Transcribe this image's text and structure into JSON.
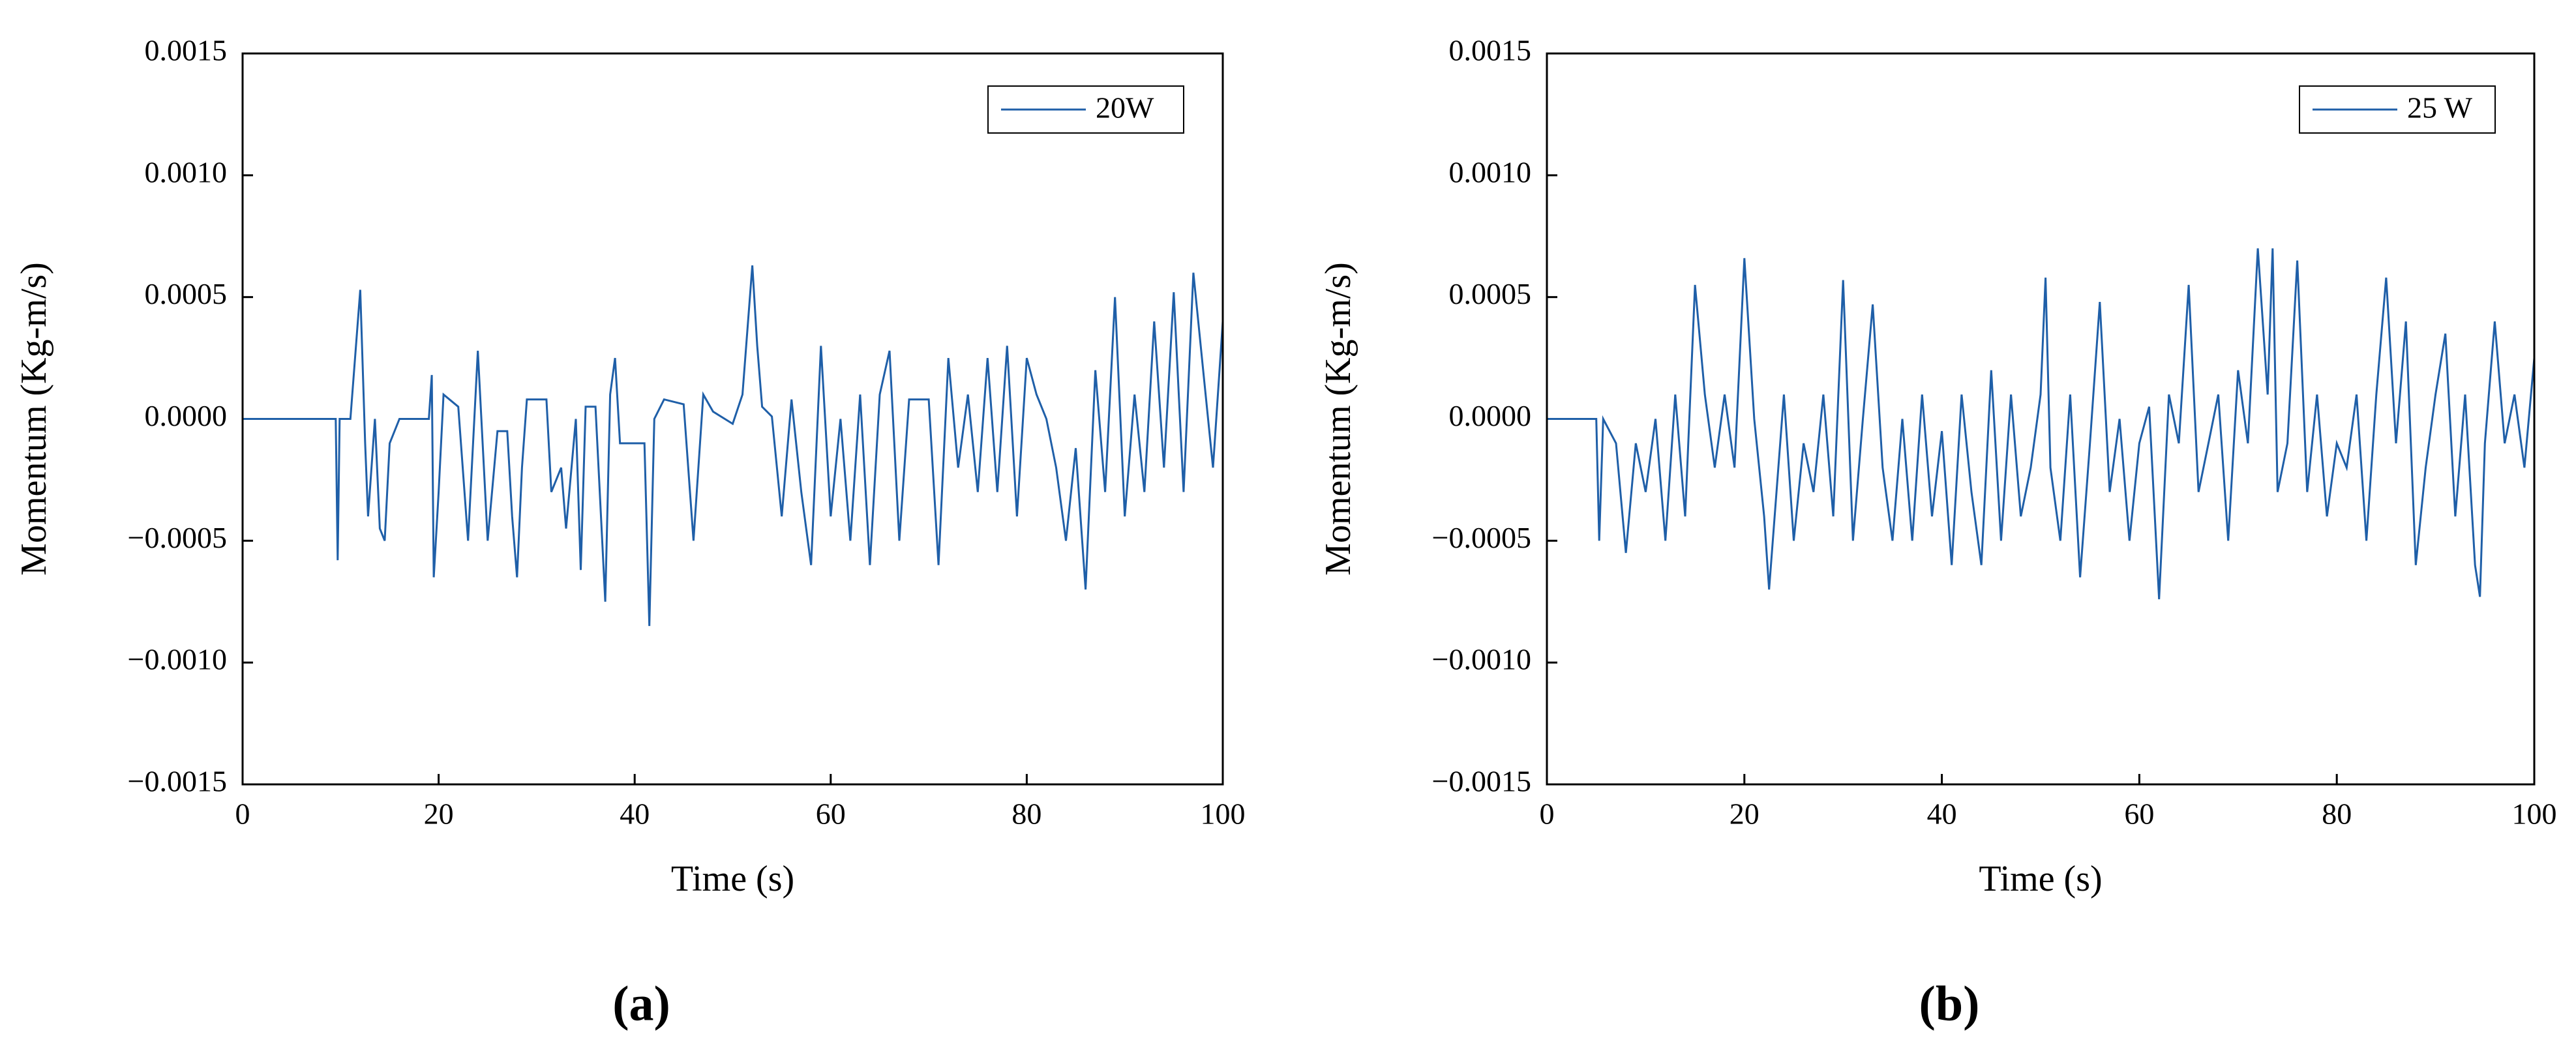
{
  "chart_data": [
    {
      "type": "line",
      "panel_label": "(a)",
      "x_label": "Time (s)",
      "y_label": "Momentum (Kg-m/s)",
      "xlim": [
        0,
        100
      ],
      "ylim": [
        -0.0015,
        0.0015
      ],
      "xticks": [
        0,
        20,
        40,
        60,
        80,
        100
      ],
      "yticks": [
        {
          "value": -0.0015,
          "label": "−0.0015"
        },
        {
          "value": -0.001,
          "label": "−0.0010"
        },
        {
          "value": -0.0005,
          "label": "−0.0005"
        },
        {
          "value": 0,
          "label": "0.0000"
        },
        {
          "value": 0.0005,
          "label": "0.0005"
        },
        {
          "value": 0.001,
          "label": "0.0010"
        },
        {
          "value": 0.0015,
          "label": "0.0015"
        }
      ],
      "legend_position": "upper right",
      "x": [
        0,
        9.5,
        9.7,
        9.9,
        11,
        12,
        12.5,
        12.8,
        13.5,
        14,
        14.5,
        15,
        16,
        19,
        19.3,
        19.5,
        20,
        20.5,
        22,
        23,
        24,
        25,
        26,
        27,
        27.5,
        28,
        28.5,
        29,
        31,
        31.5,
        32.5,
        33,
        34,
        34.5,
        35,
        36,
        37,
        37.5,
        38,
        38.5,
        41,
        41.5,
        42,
        43,
        45,
        46,
        47,
        48,
        50,
        51,
        52,
        52.5,
        53,
        54,
        55,
        56,
        57,
        58,
        59,
        60,
        61,
        62,
        63,
        64,
        65,
        66,
        67,
        68,
        70,
        71,
        72,
        73,
        74,
        75,
        76,
        77,
        78,
        79,
        80,
        81,
        82,
        83,
        84,
        85,
        86,
        87,
        88,
        89,
        90,
        91,
        92,
        93,
        94,
        95,
        96,
        97,
        98,
        99,
        100
      ],
      "series": [
        {
          "name": "20W",
          "color": "#1f5fa8",
          "values": [
            0,
            0,
            -0.00058,
            0,
            0,
            0.00053,
            -0.0001,
            -0.0004,
            0,
            -0.00045,
            -0.0005,
            -0.0001,
            0,
            0,
            0.00018,
            -0.00065,
            -0.0003,
            0.0001,
            5e-05,
            -0.0005,
            0.00028,
            -0.0005,
            -5e-05,
            -5e-05,
            -0.0004,
            -0.00065,
            -0.0002,
            8e-05,
            8e-05,
            -0.0003,
            -0.0002,
            -0.00045,
            0,
            -0.00062,
            5e-05,
            5e-05,
            -0.00075,
            0.0001,
            0.00025,
            -0.0001,
            -0.0001,
            -0.00085,
            0,
            8e-05,
            6e-05,
            -0.0005,
            0.0001,
            3e-05,
            -2e-05,
            0.0001,
            0.00063,
            0.0003,
            5e-05,
            1e-05,
            -0.0004,
            8e-05,
            -0.0003,
            -0.0006,
            0.0003,
            -0.0004,
            0,
            -0.0005,
            0.0001,
            -0.0006,
            0.0001,
            0.00028,
            -0.0005,
            8e-05,
            8e-05,
            -0.0006,
            0.00025,
            -0.0002,
            0.0001,
            -0.0003,
            0.00025,
            -0.0003,
            0.0003,
            -0.0004,
            0.00025,
            0.0001,
            0,
            -0.0002,
            -0.0005,
            -0.00012,
            -0.0007,
            0.0002,
            -0.0003,
            0.0005,
            -0.0004,
            0.0001,
            -0.0003,
            0.0004,
            -0.0002,
            0.00052,
            -0.0003,
            0.0006,
            0.0002,
            -0.0002,
            0.0004
          ]
        }
      ]
    },
    {
      "type": "line",
      "panel_label": "(b)",
      "x_label": "Time (s)",
      "y_label": "Momentum (Kg-m/s)",
      "xlim": [
        0,
        100
      ],
      "ylim": [
        -0.0015,
        0.0015
      ],
      "xticks": [
        0,
        20,
        40,
        60,
        80,
        100
      ],
      "yticks": [
        {
          "value": -0.0015,
          "label": "−0.0015"
        },
        {
          "value": -0.001,
          "label": "−0.0010"
        },
        {
          "value": -0.0005,
          "label": "−0.0005"
        },
        {
          "value": 0,
          "label": "0.0000"
        },
        {
          "value": 0.0005,
          "label": "0.0005"
        },
        {
          "value": 0.001,
          "label": "0.0010"
        },
        {
          "value": 0.0015,
          "label": "0.0015"
        }
      ],
      "legend_position": "upper right",
      "x": [
        0,
        5,
        5.3,
        5.7,
        7,
        8,
        9,
        10,
        11,
        12,
        13,
        14,
        15,
        16,
        17,
        18,
        19,
        20,
        21,
        22,
        22.5,
        24,
        25,
        26,
        27,
        28,
        29,
        30,
        31,
        32,
        33,
        34,
        35,
        36,
        37,
        38,
        39,
        40,
        41,
        42,
        43,
        44,
        45,
        46,
        47,
        48,
        49,
        50,
        50.5,
        51,
        52,
        53,
        54,
        55,
        56,
        57,
        58,
        59,
        60,
        61,
        62,
        63,
        64,
        65,
        66,
        67,
        68,
        69,
        70,
        71,
        72,
        73,
        73.5,
        74,
        75,
        76,
        77,
        78,
        79,
        80,
        81,
        82,
        83,
        84,
        85,
        86,
        87,
        88,
        89,
        90,
        91,
        92,
        93,
        94,
        94.5,
        95,
        96,
        97,
        98,
        99,
        100
      ],
      "series": [
        {
          "name": "25 W",
          "color": "#1f5fa8",
          "values": [
            0,
            0,
            -0.0005,
            0,
            -0.0001,
            -0.00055,
            -0.0001,
            -0.0003,
            0,
            -0.0005,
            0.0001,
            -0.0004,
            0.00055,
            0.0001,
            -0.0002,
            0.0001,
            -0.0002,
            0.00066,
            0,
            -0.0004,
            -0.0007,
            0.0001,
            -0.0005,
            -0.0001,
            -0.0003,
            0.0001,
            -0.0004,
            0.00057,
            -0.0005,
            0,
            0.00047,
            -0.0002,
            -0.0005,
            0,
            -0.0005,
            0.0001,
            -0.0004,
            -5e-05,
            -0.0006,
            0.0001,
            -0.0003,
            -0.0006,
            0.0002,
            -0.0005,
            0.0001,
            -0.0004,
            -0.0002,
            0.0001,
            0.00058,
            -0.0002,
            -0.0005,
            0.0001,
            -0.00065,
            -0.0001,
            0.00048,
            -0.0003,
            0,
            -0.0005,
            -0.0001,
            5e-05,
            -0.00074,
            0.0001,
            -0.0001,
            0.00055,
            -0.0003,
            -0.0001,
            0.0001,
            -0.0005,
            0.0002,
            -0.0001,
            0.0007,
            0.0001,
            0.0007,
            -0.0003,
            -0.0001,
            0.00065,
            -0.0003,
            0.0001,
            -0.0004,
            -0.0001,
            -0.0002,
            0.0001,
            -0.0005,
            0.0001,
            0.00058,
            -0.0001,
            0.0004,
            -0.0006,
            -0.0002,
            0.0001,
            0.00035,
            -0.0004,
            0.0001,
            -0.0006,
            -0.00073,
            -0.0001,
            0.0004,
            -0.0001,
            0.0001,
            -0.0002,
            0.00025
          ]
        }
      ]
    }
  ]
}
